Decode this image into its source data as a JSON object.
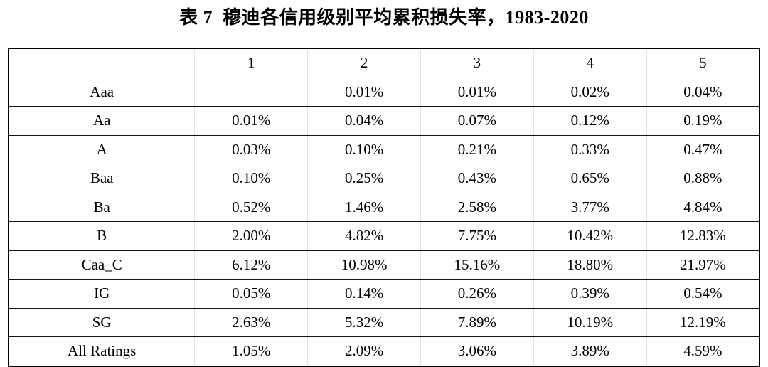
{
  "page": {
    "background": "#ffffff",
    "text_color": "#000000",
    "outer_border_color": "#000000",
    "row_line_color": "#141414",
    "column_line_color": "#e2e2e2"
  },
  "title": "表 7  穆迪各信用级别平均累积损失率，1983-2020",
  "chart_data": {
    "type": "table",
    "title": "表 7  穆迪各信用级别平均累积损失率，1983-2020",
    "columns": [
      "",
      "1",
      "2",
      "3",
      "4",
      "5"
    ],
    "rows": [
      {
        "label": "Aaa",
        "values": [
          "",
          "0.01%",
          "0.01%",
          "0.02%",
          "0.04%"
        ]
      },
      {
        "label": "Aa",
        "values": [
          "0.01%",
          "0.04%",
          "0.07%",
          "0.12%",
          "0.19%"
        ]
      },
      {
        "label": "A",
        "values": [
          "0.03%",
          "0.10%",
          "0.21%",
          "0.33%",
          "0.47%"
        ]
      },
      {
        "label": "Baa",
        "values": [
          "0.10%",
          "0.25%",
          "0.43%",
          "0.65%",
          "0.88%"
        ]
      },
      {
        "label": "Ba",
        "values": [
          "0.52%",
          "1.46%",
          "2.58%",
          "3.77%",
          "4.84%"
        ]
      },
      {
        "label": "B",
        "values": [
          "2.00%",
          "4.82%",
          "7.75%",
          "10.42%",
          "12.83%"
        ]
      },
      {
        "label": "Caa_C",
        "values": [
          "6.12%",
          "10.98%",
          "15.16%",
          "18.80%",
          "21.97%"
        ]
      },
      {
        "label": "IG",
        "values": [
          "0.05%",
          "0.14%",
          "0.26%",
          "0.39%",
          "0.54%"
        ]
      },
      {
        "label": "SG",
        "values": [
          "2.63%",
          "5.32%",
          "7.89%",
          "10.19%",
          "12.19%"
        ]
      },
      {
        "label": "All Ratings",
        "values": [
          "1.05%",
          "2.09%",
          "3.06%",
          "3.89%",
          "4.59%"
        ]
      }
    ],
    "layout": {
      "grid": "horizontal rules strong, vertical rules faint",
      "header_row": "year numbers 1-5",
      "first_column": "rating category labels, centered"
    }
  }
}
